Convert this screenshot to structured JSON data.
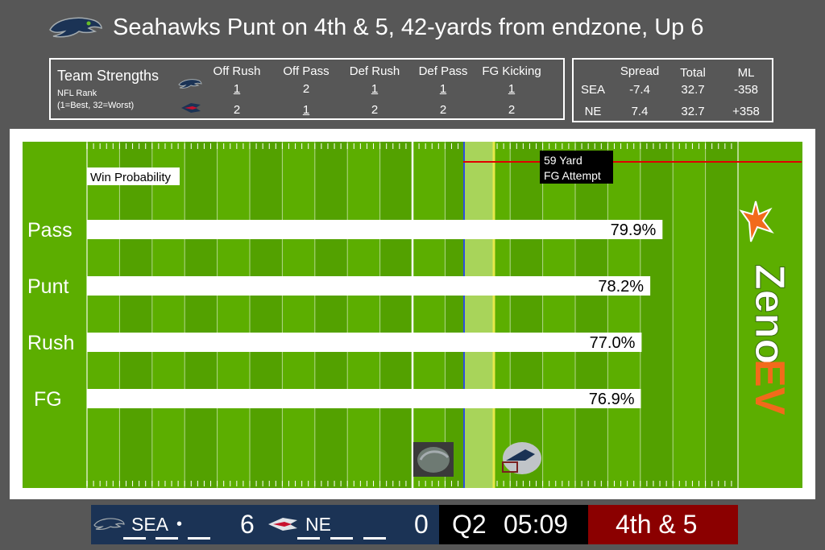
{
  "header": {
    "title": "Seahawks Punt on 4th & 5, 42-yards from endzone, Up 6"
  },
  "strengths": {
    "title": "Team Strengths",
    "subtitle1": "NFL Rank",
    "subtitle2": "(1=Best, 32=Worst)",
    "columns": [
      "Off Rush",
      "Off Pass",
      "Def Rush",
      "Def Pass",
      "FG Kicking"
    ],
    "sea": [
      "1",
      "2",
      "1",
      "1",
      "1"
    ],
    "ne": [
      "2",
      "1",
      "2",
      "2",
      "2"
    ]
  },
  "odds": {
    "columns": [
      "Spread",
      "Total",
      "ML"
    ],
    "sea": {
      "team": "SEA",
      "spread": "-7.4",
      "total": "32.7",
      "ml": "-358"
    },
    "ne": {
      "team": "NE",
      "spread": "7.4",
      "total": "32.7",
      "ml": "+358"
    }
  },
  "field": {
    "win_prob_label": "Win Probability",
    "fg_label_line1": "59 Yard",
    "fg_label_line2": "FG Attempt",
    "brand_top": "Zeno",
    "brand_bottom": "EV",
    "colors": {
      "turf": "#5cae00",
      "turf_dark": "#53a100",
      "ball_line": "#2f4fe0",
      "first_down": "#e6e84a",
      "fg_line": "#e00000",
      "brand_orange": "#f26a1b"
    }
  },
  "chart_data": {
    "type": "bar",
    "categories": [
      "Pass",
      "Punt",
      "Rush",
      "FG"
    ],
    "values": [
      79.9,
      78.2,
      77.0,
      76.9
    ],
    "value_labels": [
      "79.9%",
      "78.2%",
      "77.0%",
      "76.9%"
    ],
    "xlabel": "Win Probability"
  },
  "scoreboard": {
    "home_abbr": "SEA",
    "possession_marker": "•",
    "home_score": "6",
    "away_abbr": "NE",
    "away_score": "0",
    "quarter": "Q2",
    "clock": "05:09",
    "down_distance": "4th & 5"
  }
}
